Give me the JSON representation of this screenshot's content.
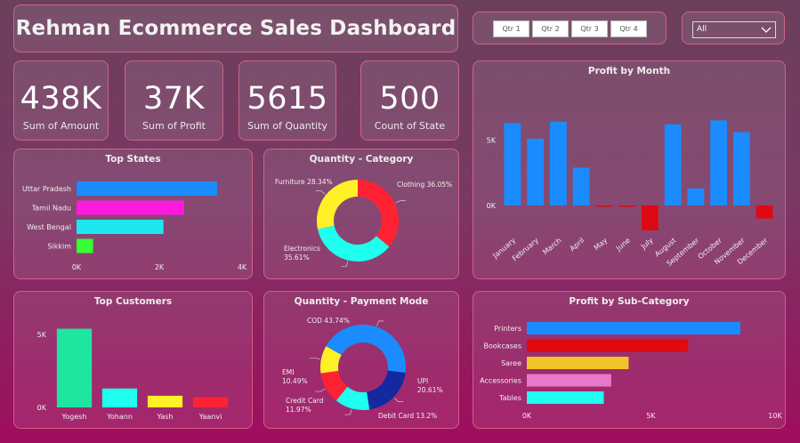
{
  "title": "Rehman Ecommerce Sales Dashboard",
  "filters": {
    "quarters": [
      "Qtr 1",
      "Qtr 2",
      "Qtr 3",
      "Qtr 4"
    ],
    "dropdown_value": "All"
  },
  "kpis": [
    {
      "value": "438K",
      "label": "Sum of Amount"
    },
    {
      "value": "37K",
      "label": "Sum of Profit"
    },
    {
      "value": "5615",
      "label": "Sum of Quantity"
    },
    {
      "value": "500",
      "label": "Count of State"
    }
  ],
  "chart_data": [
    {
      "id": "top_states",
      "type": "bar",
      "orientation": "horizontal",
      "title": "Top States",
      "categories": [
        "Uttar Pradesh",
        "Tamil Nadu",
        "West Bengal",
        "Sikkim"
      ],
      "values": [
        3400,
        2600,
        2100,
        400
      ],
      "colors": [
        "#1a8cff",
        "#ff1ae0",
        "#1de8f0",
        "#33ff33"
      ],
      "xlim": [
        0,
        4000
      ],
      "xticks": [
        "0K",
        "2K",
        "4K"
      ]
    },
    {
      "id": "quantity_category",
      "type": "pie",
      "donut": true,
      "title": "Quantity - Category",
      "slices": [
        {
          "name": "Clothing",
          "label": "36.05%",
          "value": 36.05,
          "color": "#ff2233"
        },
        {
          "name": "Electronics",
          "label": "35.61%",
          "value": 35.61,
          "color": "#1efff0"
        },
        {
          "name": "Furniture",
          "label": "28.34%",
          "value": 28.34,
          "color": "#fff028"
        }
      ]
    },
    {
      "id": "profit_by_month",
      "type": "bar",
      "title": "Profit by Month",
      "categories": [
        "January",
        "February",
        "March",
        "April",
        "May",
        "June",
        "July",
        "August",
        "September",
        "October",
        "November",
        "December"
      ],
      "values": [
        6300,
        5100,
        6400,
        2900,
        -100,
        -100,
        -1900,
        6200,
        1300,
        6500,
        5600,
        -1000
      ],
      "positive_color": "#1a8cff",
      "negative_color": "#dd0a12",
      "ylim": [
        -2000,
        7000
      ],
      "yticks": [
        {
          "v": 0,
          "label": "0K"
        },
        {
          "v": 5000,
          "label": "5K"
        }
      ]
    },
    {
      "id": "top_customers",
      "type": "bar",
      "title": "Top Customers",
      "categories": [
        "Yogesh",
        "Yohann",
        "Yash",
        "Yaanvi"
      ],
      "values": [
        5400,
        1300,
        800,
        700
      ],
      "colors": [
        "#1ee6a0",
        "#1efff0",
        "#fff028",
        "#ff2233"
      ],
      "ylim": [
        0,
        5800
      ],
      "yticks": [
        {
          "v": 0,
          "label": "0K"
        },
        {
          "v": 5000,
          "label": "5K"
        }
      ]
    },
    {
      "id": "quantity_payment_mode",
      "type": "pie",
      "donut": true,
      "title": "Quantity - Payment Mode",
      "slices": [
        {
          "name": "COD",
          "label": "43.74%",
          "value": 43.74,
          "color": "#1a8cff"
        },
        {
          "name": "UPI",
          "label": "20.61%",
          "value": 20.61,
          "color": "#1429a0"
        },
        {
          "name": "Debit Card",
          "label": "13.2%",
          "value": 13.2,
          "color": "#1efff0"
        },
        {
          "name": "Credit Card",
          "label": "11.97%",
          "value": 11.97,
          "color": "#ff2233"
        },
        {
          "name": "EMI",
          "label": "10.49%",
          "value": 10.49,
          "color": "#fff028"
        }
      ]
    },
    {
      "id": "profit_by_subcategory",
      "type": "bar",
      "orientation": "horizontal",
      "title": "Profit by Sub-Category",
      "categories": [
        "Printers",
        "Bookcases",
        "Saree",
        "Accessories",
        "Tables"
      ],
      "values": [
        8600,
        6500,
        4100,
        3400,
        3100
      ],
      "colors": [
        "#1a8cff",
        "#dd0a12",
        "#f2c42a",
        "#e67ac8",
        "#1efff0"
      ],
      "xlim": [
        0,
        10000
      ],
      "xticks": [
        "0K",
        "5K",
        "10K"
      ]
    }
  ]
}
